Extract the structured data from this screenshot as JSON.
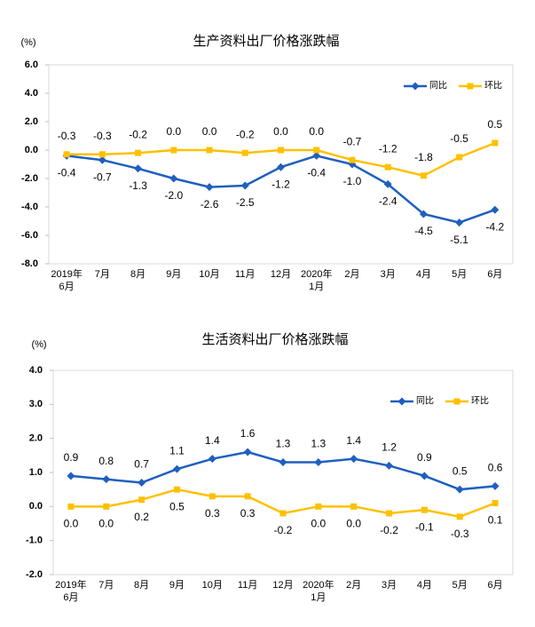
{
  "chart_data": [
    {
      "type": "line",
      "title": "生产资料出厂价格涨跌幅",
      "unit": "(%)",
      "categories": [
        "2019年\n6月",
        "7月",
        "8月",
        "9月",
        "10月",
        "11月",
        "12月",
        "2020年\n1月",
        "2月",
        "3月",
        "4月",
        "5月",
        "6月"
      ],
      "ylim": [
        -8,
        6
      ],
      "yticks": [
        {
          "value": -8,
          "label": "-8.0"
        },
        {
          "value": -6,
          "label": "-6.0"
        },
        {
          "value": -4,
          "label": "-4.0"
        },
        {
          "value": -2,
          "label": "-2.0"
        },
        {
          "value": 0,
          "label": "0.0"
        },
        {
          "value": 2,
          "label": "2.0"
        },
        {
          "value": 4,
          "label": "4.0"
        },
        {
          "value": 6,
          "label": "6.0"
        }
      ],
      "series": [
        {
          "name": "同比",
          "color": "#1f5fbf",
          "marker": "diamond",
          "label_position": "below",
          "values": [
            -0.4,
            -0.7,
            -1.3,
            -2.0,
            -2.6,
            -2.5,
            -1.2,
            -0.4,
            -1.0,
            -2.4,
            -4.5,
            -5.1,
            -4.2
          ],
          "value_labels": [
            "-0.4",
            "-0.7",
            "-1.3",
            "-2.0",
            "-2.6",
            "-2.5",
            "-1.2",
            "-0.4",
            "-1.0",
            "-2.4",
            "-4.5",
            "-5.1",
            "-4.2"
          ]
        },
        {
          "name": "环比",
          "color": "#ffc000",
          "marker": "square",
          "label_position": "above",
          "values": [
            -0.3,
            -0.3,
            -0.2,
            0.0,
            0.0,
            -0.2,
            0.0,
            0.0,
            -0.7,
            -1.2,
            -1.8,
            -0.5,
            0.5
          ],
          "value_labels": [
            "-0.3",
            "-0.3",
            "-0.2",
            "0.0",
            "0.0",
            "-0.2",
            "0.0",
            "0.0",
            "-0.7",
            "-1.2",
            "-1.8",
            "-0.5",
            "0.5"
          ]
        }
      ]
    },
    {
      "type": "line",
      "title": "生活资料出厂价格涨跌幅",
      "unit": "(%)",
      "categories": [
        "2019年\n6月",
        "7月",
        "8月",
        "9月",
        "10月",
        "11月",
        "12月",
        "2020年\n1月",
        "2月",
        "3月",
        "4月",
        "5月",
        "6月"
      ],
      "ylim": [
        -2,
        4
      ],
      "yticks": [
        {
          "value": -2,
          "label": "-2.0"
        },
        {
          "value": -1,
          "label": "-1.0"
        },
        {
          "value": 0,
          "label": "0.0"
        },
        {
          "value": 1,
          "label": "1.0"
        },
        {
          "value": 2,
          "label": "2.0"
        },
        {
          "value": 3,
          "label": "3.0"
        },
        {
          "value": 4,
          "label": "4.0"
        }
      ],
      "series": [
        {
          "name": "同比",
          "color": "#1f5fbf",
          "marker": "diamond",
          "label_position": "above",
          "values": [
            0.9,
            0.8,
            0.7,
            1.1,
            1.4,
            1.6,
            1.3,
            1.3,
            1.4,
            1.2,
            0.9,
            0.5,
            0.6
          ],
          "value_labels": [
            "0.9",
            "0.8",
            "0.7",
            "1.1",
            "1.4",
            "1.6",
            "1.3",
            "1.3",
            "1.4",
            "1.2",
            "0.9",
            "0.5",
            "0.6"
          ]
        },
        {
          "name": "环比",
          "color": "#ffc000",
          "marker": "square",
          "label_position": "below",
          "values": [
            0.0,
            0.0,
            0.2,
            0.5,
            0.3,
            0.3,
            -0.2,
            0.0,
            0.0,
            -0.2,
            -0.1,
            -0.3,
            0.1
          ],
          "value_labels": [
            "0.0",
            "0.0",
            "0.2",
            "0.5",
            "0.3",
            "0.3",
            "-0.2",
            "0.0",
            "0.0",
            "-0.2",
            "-0.1",
            "-0.3",
            "0.1"
          ]
        }
      ]
    }
  ]
}
